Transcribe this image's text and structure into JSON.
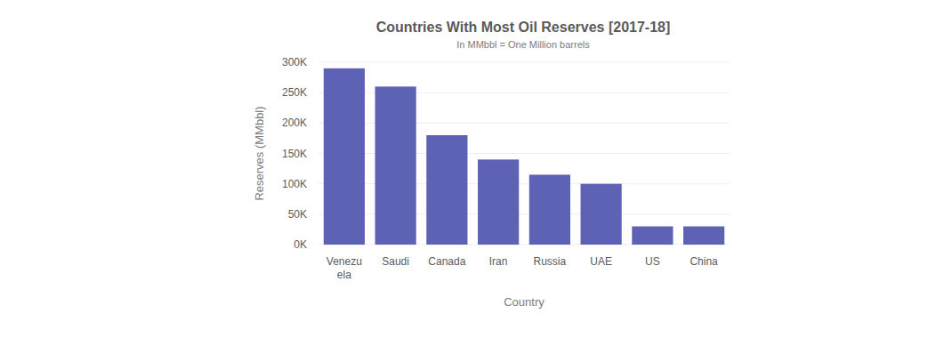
{
  "chart_data": {
    "type": "bar",
    "title": "Countries With Most Oil Reserves [2017-18]",
    "subtitle": "In MMbbl = One Million barrels",
    "x_label": "Country",
    "y_label": "Reserves (MMbbl)",
    "categories": [
      "Venezuela",
      "Saudi",
      "Canada",
      "Iran",
      "Russia",
      "UAE",
      "US",
      "China"
    ],
    "values": [
      290000,
      260000,
      180000,
      140000,
      115000,
      100000,
      30000,
      30000
    ],
    "color": "#5d62b5",
    "ylim": [
      0,
      300000
    ],
    "yticks": [
      {
        "value": 0,
        "label": "0K"
      },
      {
        "value": 50000,
        "label": "50K"
      },
      {
        "value": 100000,
        "label": "100K"
      },
      {
        "value": 150000,
        "label": "150K"
      },
      {
        "value": 200000,
        "label": "200K"
      },
      {
        "value": 250000,
        "label": "250K"
      },
      {
        "value": 300000,
        "label": "300K"
      }
    ],
    "grid": true
  }
}
